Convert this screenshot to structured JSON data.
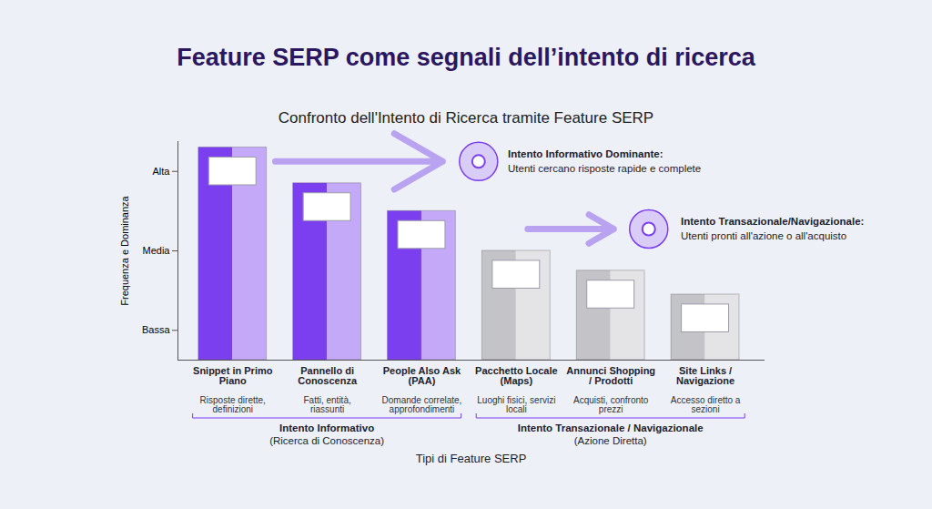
{
  "chart_data": {
    "type": "bar",
    "title": "Feature SERP come segnali dell’intento di ricerca",
    "subtitle": "Confronto dell'Intento di Ricerca tramite Feature SERP",
    "x_label": "Tipi di Feature SERP",
    "y_label": "Frequenza e Dominanza",
    "categories": [
      "Snippet in Primo Piano",
      "Pannello di Conoscenza",
      "People Also Ask (PAA)",
      "Pacchetto Locale (Maps)",
      "Annunci Shopping / Prodotti",
      "Site Links / Navigazione"
    ],
    "descriptions": [
      "Risposte dirette, definizioni",
      "Fatti, entità, riassunti",
      "Domande correlate, approfondimenti",
      "Luoghi fisici, servizi locali",
      "Acquisti, confronto prezzi",
      "Accesso diretto a sezioni"
    ],
    "values": [
      5.6,
      4.7,
      4.0,
      3.0,
      2.5,
      1.9
    ],
    "colors": [
      "#7b3ff0",
      "#7b3ff0",
      "#7b3ff0",
      "#c3c3c8",
      "#c3c3c8",
      "#c3c3c8"
    ],
    "ylim": [
      0.25,
      5.75
    ],
    "yticks": [
      {
        "value": 1,
        "label": "Bassa"
      },
      {
        "value": 3,
        "label": "Media"
      },
      {
        "value": 5,
        "label": "Alta"
      }
    ],
    "grid": false,
    "groups": [
      {
        "label": "Intento Informativo",
        "sublabel": "(Ricerca di Conoscenza)",
        "categories": [
          "Snippet in Primo Piano",
          "Pannello di Conoscenza",
          "People Also Ask (PAA)"
        ]
      },
      {
        "label": "Intento Transazionale / Navigazionale",
        "sublabel": "(Azione Diretta)",
        "categories": [
          "Pacchetto Locale (Maps)",
          "Annunci Shopping / Prodotti",
          "Site Links / Navigazione"
        ]
      }
    ],
    "annotations": [
      {
        "title": "Intento Informativo Dominante:",
        "text": "Utenti cercano risposte rapide e complete"
      },
      {
        "title": "Intento Transazionale/Navigazionale:",
        "text": "Utenti pronti all'azione o all'acquisto"
      }
    ]
  }
}
